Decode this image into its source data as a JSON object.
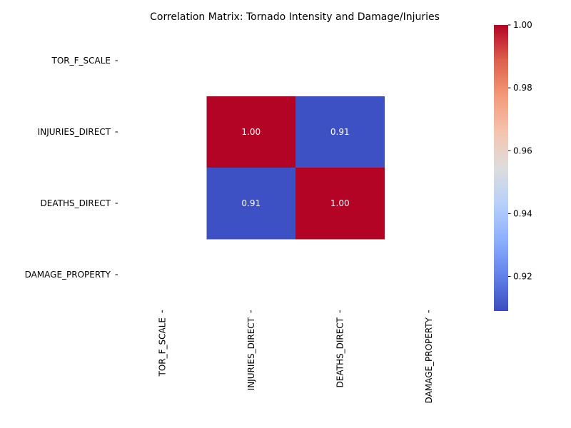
{
  "chart_data": {
    "type": "heatmap",
    "title": "Correlation Matrix: Tornado Intensity and Damage/Injuries",
    "row_labels": [
      "TOR_F_SCALE",
      "INJURIES_DIRECT",
      "DEATHS_DIRECT",
      "DAMAGE_PROPERTY"
    ],
    "col_labels": [
      "TOR_F_SCALE",
      "INJURIES_DIRECT",
      "DEATHS_DIRECT",
      "DAMAGE_PROPERTY"
    ],
    "values": [
      [
        null,
        null,
        null,
        null
      ],
      [
        null,
        1.0,
        0.91,
        null
      ],
      [
        null,
        0.91,
        1.0,
        null
      ],
      [
        null,
        null,
        null,
        null
      ]
    ],
    "cell_labels": [
      [
        "",
        "",
        "",
        ""
      ],
      [
        "",
        "1.00",
        "0.91",
        ""
      ],
      [
        "",
        "0.91",
        "1.00",
        ""
      ],
      [
        "",
        "",
        "",
        ""
      ]
    ],
    "colormap": "coolwarm",
    "color_low": "#3b4cc0",
    "color_high": "#b40426",
    "colorbar": {
      "min": 0.909,
      "max": 1.0,
      "ticks": [
        0.92,
        0.94,
        0.96,
        0.98,
        1.0
      ],
      "tick_labels": [
        "0.92",
        "0.94",
        "0.96",
        "0.98",
        "1.00"
      ]
    }
  }
}
